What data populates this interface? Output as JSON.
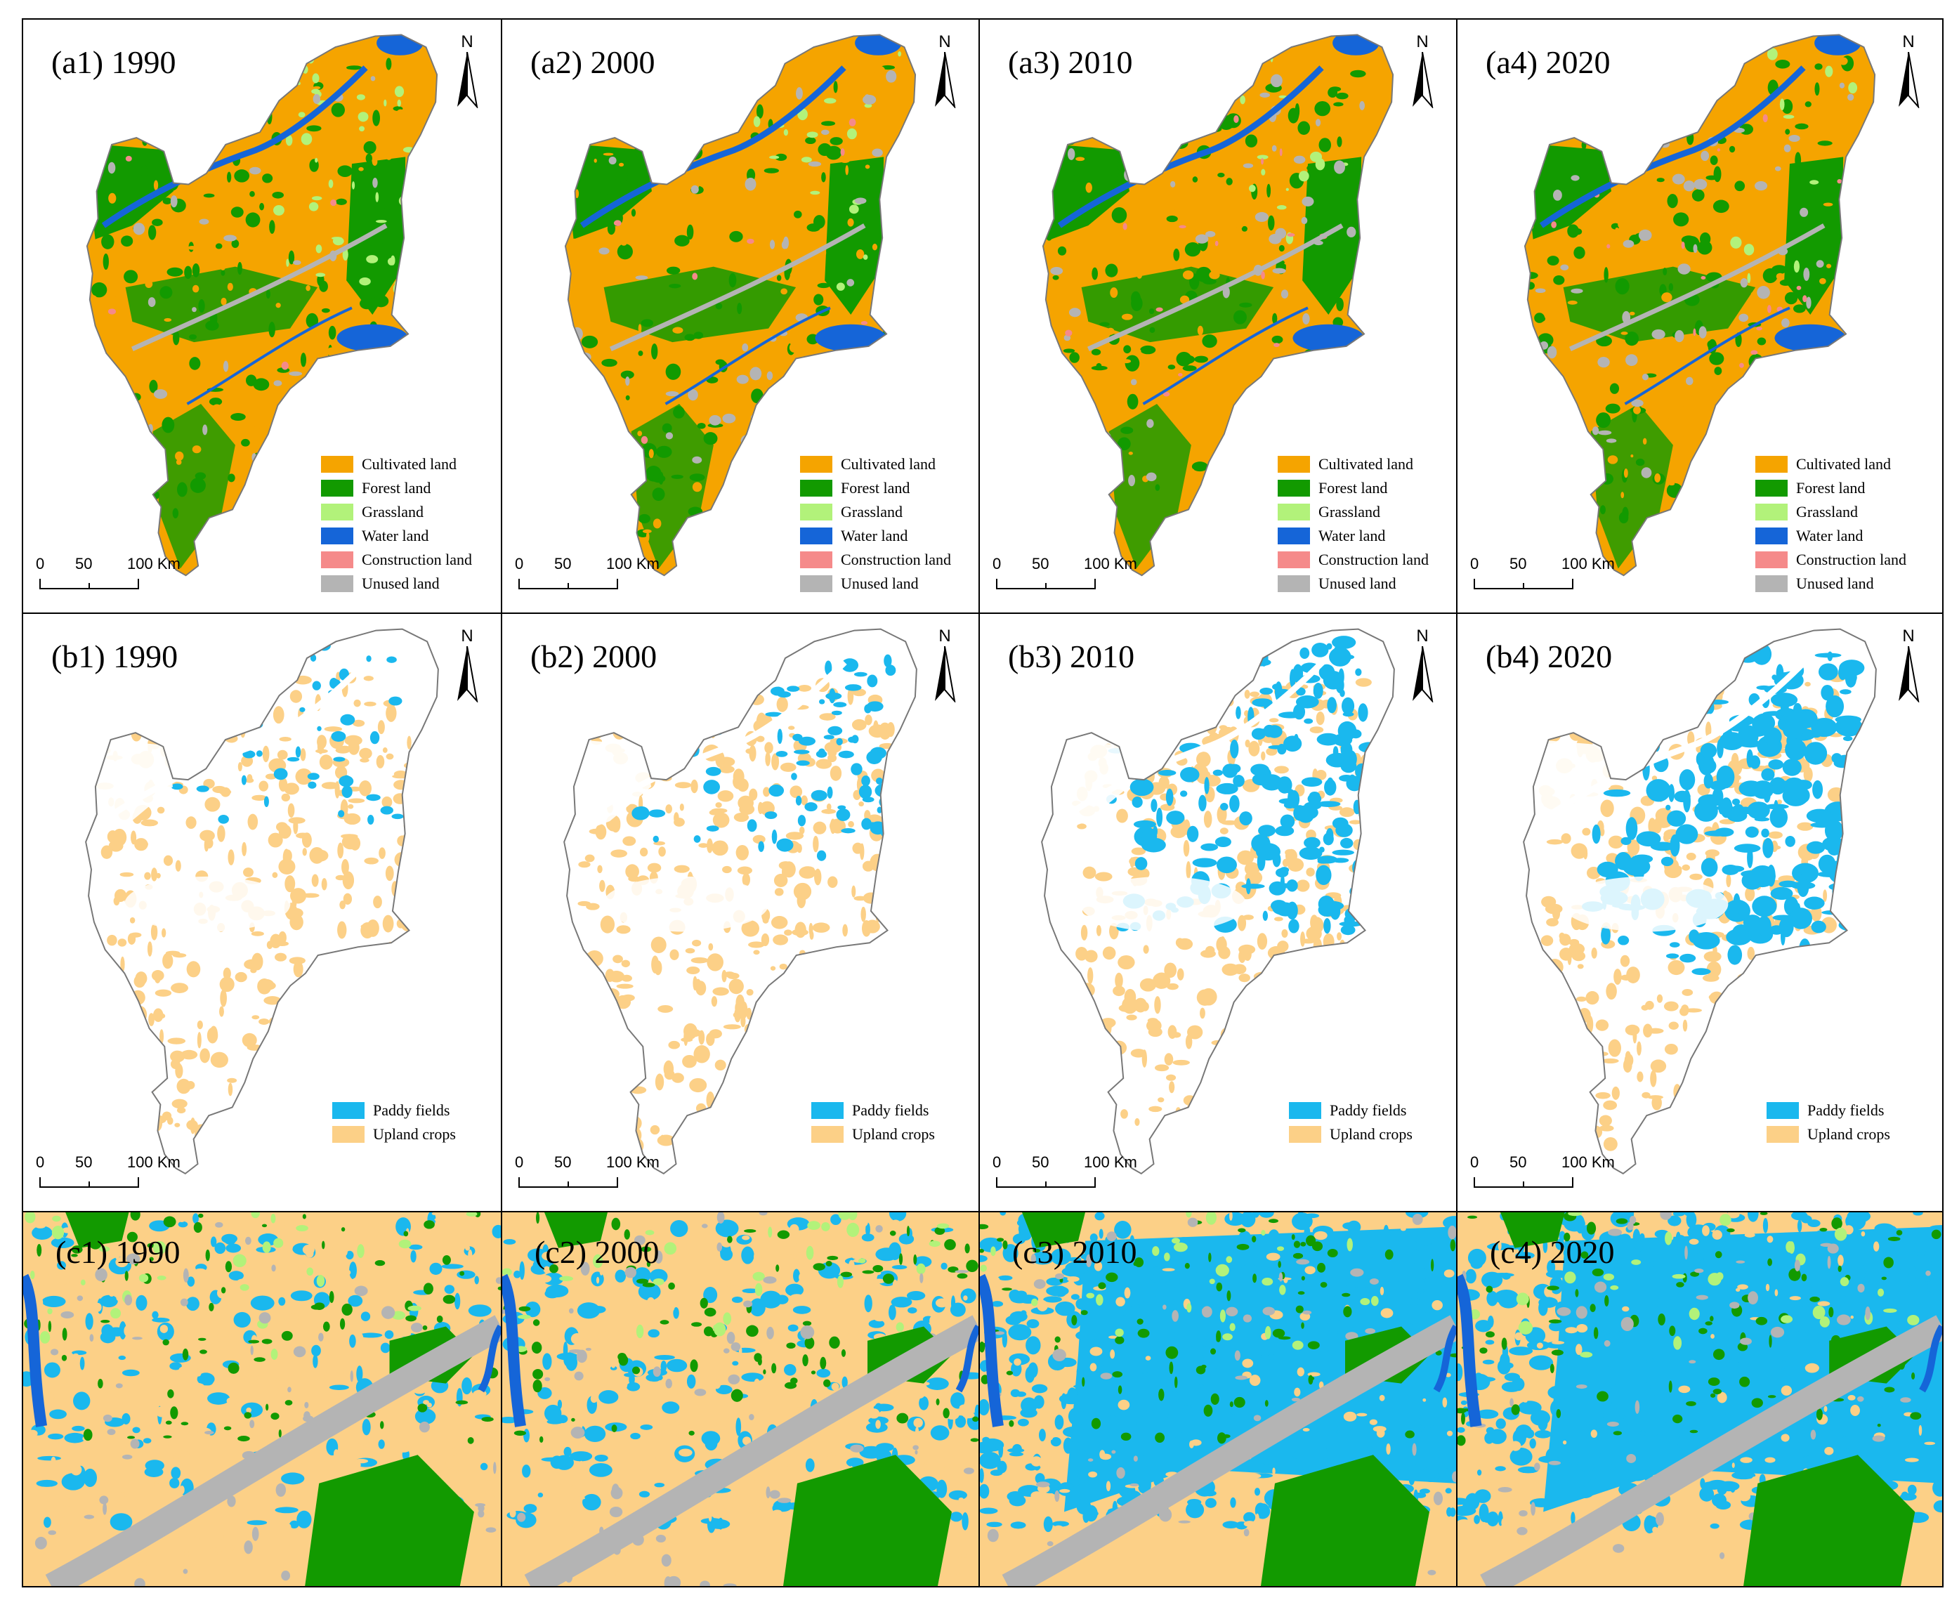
{
  "colors": {
    "cultivated": "#f5a400",
    "forest": "#129a00",
    "grass": "#b2f27a",
    "water": "#1565d8",
    "construction": "#f58a8a",
    "unused": "#b4b4b4",
    "paddy": "#1ab8ee",
    "upland": "#fcd087"
  },
  "north_letter": "N",
  "scale": {
    "tick0": "0",
    "tick1": "50",
    "tick2": "100 Km"
  },
  "row_a": {
    "panels": [
      {
        "label": "(a1) 1990"
      },
      {
        "label": "(a2) 2000"
      },
      {
        "label": "(a3) 2010"
      },
      {
        "label": "(a4) 2020"
      }
    ],
    "legend": [
      {
        "text": "Cultivated land",
        "color": "#f5a400"
      },
      {
        "text": "Forest land",
        "color": "#129a00"
      },
      {
        "text": "Grassland",
        "color": "#b2f27a"
      },
      {
        "text": "Water land",
        "color": "#1565d8"
      },
      {
        "text": "Construction land",
        "color": "#f58a8a"
      },
      {
        "text": "Unused land",
        "color": "#b4b4b4"
      }
    ]
  },
  "row_b": {
    "panels": [
      {
        "label": "(b1) 1990",
        "paddy_level": 0.12
      },
      {
        "label": "(b2) 2000",
        "paddy_level": 0.25
      },
      {
        "label": "(b3) 2010",
        "paddy_level": 0.55
      },
      {
        "label": "(b4) 2020",
        "paddy_level": 0.72
      }
    ],
    "legend": [
      {
        "text": "Paddy fields",
        "color": "#1ab8ee"
      },
      {
        "text": "Upland crops",
        "color": "#fcd087"
      }
    ]
  },
  "row_c": {
    "panels": [
      {
        "label": "(c1) 1990",
        "paddy_level": 0.3
      },
      {
        "label": "(c2) 2000",
        "paddy_level": 0.4
      },
      {
        "label": "(c3) 2010",
        "paddy_level": 0.85
      },
      {
        "label": "(c4) 2020",
        "paddy_level": 0.88
      }
    ]
  }
}
